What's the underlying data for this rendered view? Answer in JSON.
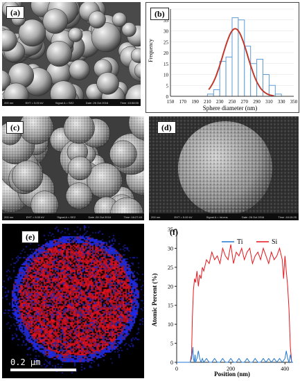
{
  "panels": {
    "a": {
      "label": "(a)",
      "sem": {
        "scale": "200 nm",
        "eht": "EHT = 5.00 kV",
        "wd": "WD = 3.2 mm",
        "signal": "Signal A = SE2",
        "mag": "Mag = 50.00 K X",
        "date": "Date :26 Oct 2016",
        "inst": "Universiti Teknologi PETRONAS",
        "time": "Time :15:56:55"
      }
    },
    "b": {
      "label": "(b)"
    },
    "c": {
      "label": "(c)",
      "sem": {
        "scale": "200 nm",
        "eht": "EHT = 5.00 kV",
        "wd": "WD = 2.8 mm",
        "signal": "Signal A = SE2",
        "mag": "Mag = 50.00 K X",
        "date": "Date :26 Oct 2016",
        "inst": "Universiti Teknologi PETRONAS",
        "time": "Time :16:27:43"
      }
    },
    "d": {
      "label": "(d)",
      "sem": {
        "scale": "200 nm",
        "eht": "EHT = 5.00 kV",
        "wd": "WD = 2.8 mm",
        "signal": "Signal A = InLens",
        "mag": "Mag = 200.00 K X",
        "date": "Date :26 Oct 2016",
        "inst": "Universiti Teknologi PETRONAS",
        "time": "Time :16:15:25"
      }
    },
    "e": {
      "label": "(e)",
      "scale": "0.2 µm"
    },
    "f": {
      "label": "(f)"
    }
  },
  "colors": {
    "hist_bar": "#5b9bd5",
    "fit_curve": "#c0392b",
    "ti": "#1f77d4",
    "si": "#e8141a",
    "map_si": "#c8102e",
    "map_ti": "#1a2ed8"
  },
  "chart_data": [
    {
      "type": "bar",
      "panel": "b",
      "title": "",
      "xlabel": "Sphere diameter (nm)",
      "ylabel": "Frequency",
      "xlim": [
        150,
        350
      ],
      "ylim": [
        0,
        40
      ],
      "xticks": [
        150,
        170,
        190,
        210,
        230,
        250,
        270,
        290,
        310,
        330,
        350
      ],
      "yticks": [
        0,
        5,
        10,
        15,
        20,
        25,
        30,
        35,
        40
      ],
      "bins": [
        {
          "x0": 210,
          "x1": 220,
          "value": 1
        },
        {
          "x0": 220,
          "x1": 230,
          "value": 3
        },
        {
          "x0": 230,
          "x1": 240,
          "value": 16
        },
        {
          "x0": 240,
          "x1": 250,
          "value": 18
        },
        {
          "x0": 250,
          "x1": 260,
          "value": 36
        },
        {
          "x0": 260,
          "x1": 270,
          "value": 35
        },
        {
          "x0": 270,
          "x1": 280,
          "value": 23
        },
        {
          "x0": 280,
          "x1": 290,
          "value": 15
        },
        {
          "x0": 290,
          "x1": 300,
          "value": 17
        },
        {
          "x0": 300,
          "x1": 310,
          "value": 10
        },
        {
          "x0": 310,
          "x1": 320,
          "value": 5
        },
        {
          "x0": 320,
          "x1": 330,
          "value": 1
        }
      ],
      "fit": {
        "type": "normal",
        "mean": 255,
        "sd": 20,
        "peak": 31
      }
    },
    {
      "type": "line",
      "panel": "f",
      "title": "",
      "xlabel": "Position (nm)",
      "ylabel": "Atomic Percent (%)",
      "xlim": [
        0,
        430
      ],
      "ylim": [
        0,
        35
      ],
      "xticks": [
        0,
        200,
        400
      ],
      "yticks": [
        0,
        5,
        10,
        15,
        20,
        25,
        30,
        35
      ],
      "legend": "top-right",
      "series": [
        {
          "name": "Ti",
          "x": [
            0,
            20,
            40,
            50,
            55,
            60,
            62,
            65,
            68,
            70,
            75,
            80,
            85,
            90,
            95,
            100,
            110,
            120,
            130,
            140,
            150,
            160,
            170,
            180,
            190,
            200,
            210,
            220,
            230,
            240,
            250,
            260,
            270,
            280,
            290,
            300,
            310,
            320,
            330,
            340,
            350,
            360,
            370,
            380,
            390,
            400,
            405,
            410,
            415,
            420,
            425,
            430
          ],
          "values": [
            0,
            0,
            0,
            0,
            1,
            4,
            1,
            0,
            2,
            0,
            1,
            3,
            1,
            0,
            1,
            0,
            1,
            0,
            0,
            1,
            0,
            0,
            1,
            0,
            0,
            1,
            0,
            0,
            1,
            0,
            0,
            1,
            0,
            0,
            1,
            0,
            0,
            1,
            0,
            1,
            0,
            1,
            0,
            1,
            0,
            1,
            3,
            1,
            0,
            2,
            0,
            0
          ]
        },
        {
          "name": "Si",
          "x": [
            0,
            20,
            40,
            50,
            55,
            58,
            62,
            66,
            70,
            75,
            80,
            85,
            90,
            95,
            100,
            110,
            120,
            130,
            140,
            150,
            160,
            170,
            180,
            190,
            200,
            210,
            220,
            230,
            240,
            250,
            260,
            270,
            280,
            290,
            300,
            310,
            320,
            330,
            340,
            350,
            360,
            370,
            380,
            390,
            395,
            400,
            405,
            410,
            415,
            420,
            425,
            430
          ],
          "values": [
            0,
            0,
            0,
            0,
            2,
            12,
            19,
            22,
            21,
            24,
            20,
            23,
            22,
            25,
            24,
            27,
            26,
            29,
            27,
            28,
            26,
            30,
            28,
            27,
            31,
            26,
            29,
            28,
            30,
            27,
            29,
            30,
            26,
            28,
            29,
            27,
            30,
            28,
            26,
            29,
            27,
            28,
            30,
            27,
            22,
            28,
            24,
            20,
            14,
            4,
            0,
            0
          ]
        }
      ]
    }
  ]
}
